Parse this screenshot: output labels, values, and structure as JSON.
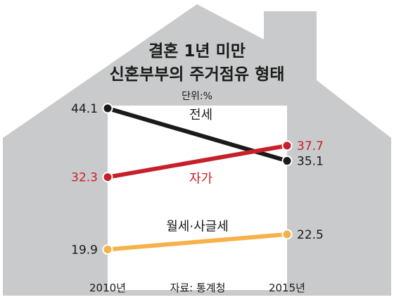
{
  "chart_data": {
    "type": "line",
    "title_line1": "결혼 1년 미만",
    "title_line2": "신혼부부의 주거점유 형태",
    "unit": "단위:%",
    "categories": [
      "2010년",
      "2015년"
    ],
    "source": "자료: 통계청",
    "ylim": [
      15,
      50
    ],
    "series": [
      {
        "name": "전세",
        "values": [
          44.1,
          35.1
        ],
        "labels": [
          "44.1",
          "35.1"
        ],
        "color": "#1a1a1a",
        "label_color": "#1a1a1a",
        "dot_inner": "#1a1a1a"
      },
      {
        "name": "자가",
        "values": [
          32.3,
          37.7
        ],
        "labels": [
          "32.3",
          "37.7"
        ],
        "color": "#c8202a",
        "label_color": "#c8202a",
        "dot_inner": "#c8202a"
      },
      {
        "name": "월세·사글세",
        "values": [
          19.9,
          22.5
        ],
        "labels": [
          "19.9",
          "22.5"
        ],
        "color": "#f6b24a",
        "label_color": "#1a1a1a",
        "dot_inner": "#f6b24a"
      }
    ],
    "grid": false,
    "legend": "inline labels"
  },
  "colors": {
    "house": "#c9cacb",
    "plot_area": "#ffffff",
    "title": "#1a1a1a"
  }
}
